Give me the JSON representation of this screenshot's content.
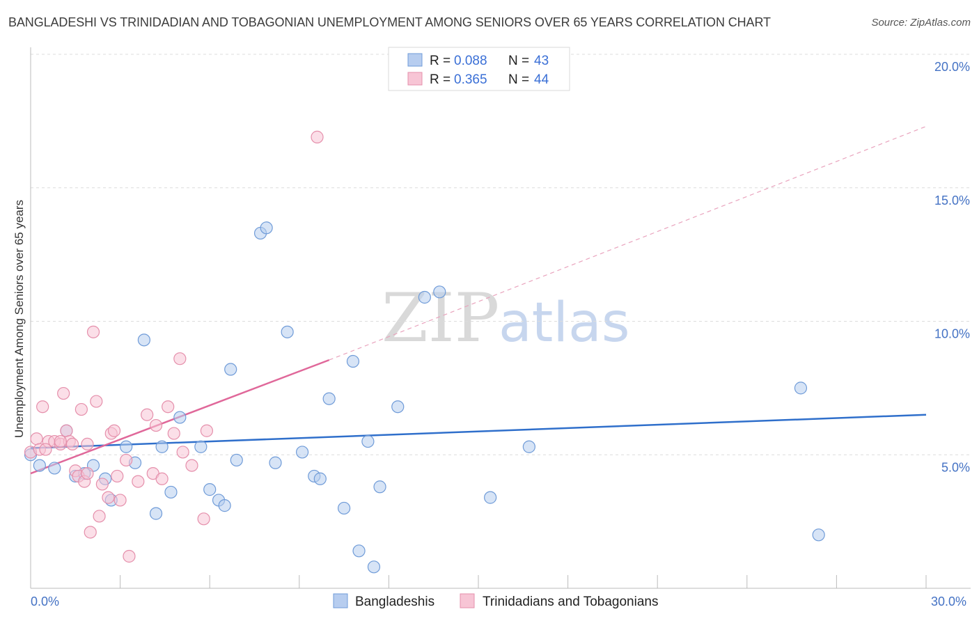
{
  "title": "BANGLADESHI VS TRINIDADIAN AND TOBAGONIAN UNEMPLOYMENT AMONG SENIORS OVER 65 YEARS CORRELATION CHART",
  "source": "Source: ZipAtlas.com",
  "watermark": {
    "zip": "ZIP",
    "atlas": "atlas"
  },
  "chart_data": {
    "type": "scatter",
    "ylabel": "Unemployment Among Seniors over 65 years",
    "xlim": [
      0,
      30
    ],
    "ylim": [
      0,
      20
    ],
    "x_tick_labels": [
      "0.0%",
      "30.0%"
    ],
    "y_ticks": [
      5,
      10,
      15,
      20
    ],
    "y_tick_labels": [
      "5.0%",
      "10.0%",
      "15.0%",
      "20.0%"
    ],
    "legend": [
      {
        "r_label": "R =",
        "r": "0.088",
        "n_label": "N =",
        "n": "43"
      },
      {
        "r_label": "R =",
        "r": "0.365",
        "n_label": "N =",
        "n": "44"
      }
    ],
    "series": [
      {
        "name": "Bangladeshis",
        "color": "#6f9bd8",
        "fill": "#b7cdef",
        "trend_color": "#2f6fcb",
        "trend": {
          "x0": 0,
          "y0": 5.25,
          "x1": 30,
          "y1": 6.5
        },
        "points": [
          [
            0.0,
            5.0
          ],
          [
            0.3,
            4.6
          ],
          [
            0.8,
            4.5
          ],
          [
            1.2,
            5.9
          ],
          [
            1.5,
            4.2
          ],
          [
            1.8,
            4.3
          ],
          [
            2.1,
            4.6
          ],
          [
            2.5,
            4.1
          ],
          [
            2.7,
            3.3
          ],
          [
            3.2,
            5.3
          ],
          [
            3.5,
            4.7
          ],
          [
            3.8,
            9.3
          ],
          [
            4.2,
            2.8
          ],
          [
            4.4,
            5.3
          ],
          [
            4.7,
            3.6
          ],
          [
            5.0,
            6.4
          ],
          [
            5.7,
            5.3
          ],
          [
            6.0,
            3.7
          ],
          [
            6.3,
            3.3
          ],
          [
            6.5,
            3.1
          ],
          [
            6.7,
            8.2
          ],
          [
            6.9,
            4.8
          ],
          [
            7.7,
            13.3
          ],
          [
            7.9,
            13.5
          ],
          [
            8.2,
            4.7
          ],
          [
            8.6,
            9.6
          ],
          [
            9.1,
            5.1
          ],
          [
            9.5,
            4.2
          ],
          [
            9.7,
            4.1
          ],
          [
            10.0,
            7.1
          ],
          [
            10.5,
            3.0
          ],
          [
            10.8,
            8.5
          ],
          [
            11.0,
            1.4
          ],
          [
            11.3,
            5.5
          ],
          [
            11.5,
            0.8
          ],
          [
            11.7,
            3.8
          ],
          [
            12.3,
            6.8
          ],
          [
            13.2,
            10.9
          ],
          [
            13.7,
            11.1
          ],
          [
            15.4,
            3.4
          ],
          [
            16.7,
            5.3
          ],
          [
            25.8,
            7.5
          ],
          [
            26.4,
            2.0
          ]
        ]
      },
      {
        "name": "Trinidadians and Tobagonians",
        "color": "#e58fab",
        "fill": "#f7c5d5",
        "trend_color": "#e0689a",
        "trend": {
          "x0": 0,
          "y0": 4.3,
          "x1": 10,
          "y1": 8.55
        },
        "trend_ext": {
          "x0": 10,
          "y0": 8.55,
          "x1": 30,
          "y1": 17.3
        },
        "points": [
          [
            0.0,
            5.1
          ],
          [
            0.2,
            5.6
          ],
          [
            0.3,
            5.2
          ],
          [
            0.4,
            6.8
          ],
          [
            0.6,
            5.5
          ],
          [
            0.8,
            5.5
          ],
          [
            1.0,
            5.4
          ],
          [
            1.1,
            7.3
          ],
          [
            1.2,
            5.9
          ],
          [
            1.3,
            5.5
          ],
          [
            1.4,
            5.4
          ],
          [
            1.5,
            4.4
          ],
          [
            1.6,
            4.2
          ],
          [
            1.7,
            6.7
          ],
          [
            1.8,
            4.0
          ],
          [
            1.9,
            4.3
          ],
          [
            2.0,
            2.1
          ],
          [
            2.1,
            9.6
          ],
          [
            2.2,
            7.0
          ],
          [
            2.3,
            2.7
          ],
          [
            2.4,
            3.9
          ],
          [
            2.6,
            3.4
          ],
          [
            2.7,
            5.8
          ],
          [
            2.8,
            5.9
          ],
          [
            2.9,
            4.2
          ],
          [
            3.0,
            3.3
          ],
          [
            3.2,
            4.8
          ],
          [
            3.3,
            1.2
          ],
          [
            3.6,
            4.0
          ],
          [
            3.9,
            6.5
          ],
          [
            4.1,
            4.3
          ],
          [
            4.2,
            6.1
          ],
          [
            4.4,
            4.1
          ],
          [
            4.6,
            6.8
          ],
          [
            4.8,
            5.8
          ],
          [
            5.0,
            8.6
          ],
          [
            5.1,
            5.1
          ],
          [
            5.4,
            4.6
          ],
          [
            5.8,
            2.6
          ],
          [
            5.9,
            5.9
          ],
          [
            9.6,
            16.9
          ],
          [
            0.5,
            5.2
          ],
          [
            1.0,
            5.5
          ],
          [
            1.9,
            5.4
          ]
        ]
      }
    ]
  }
}
